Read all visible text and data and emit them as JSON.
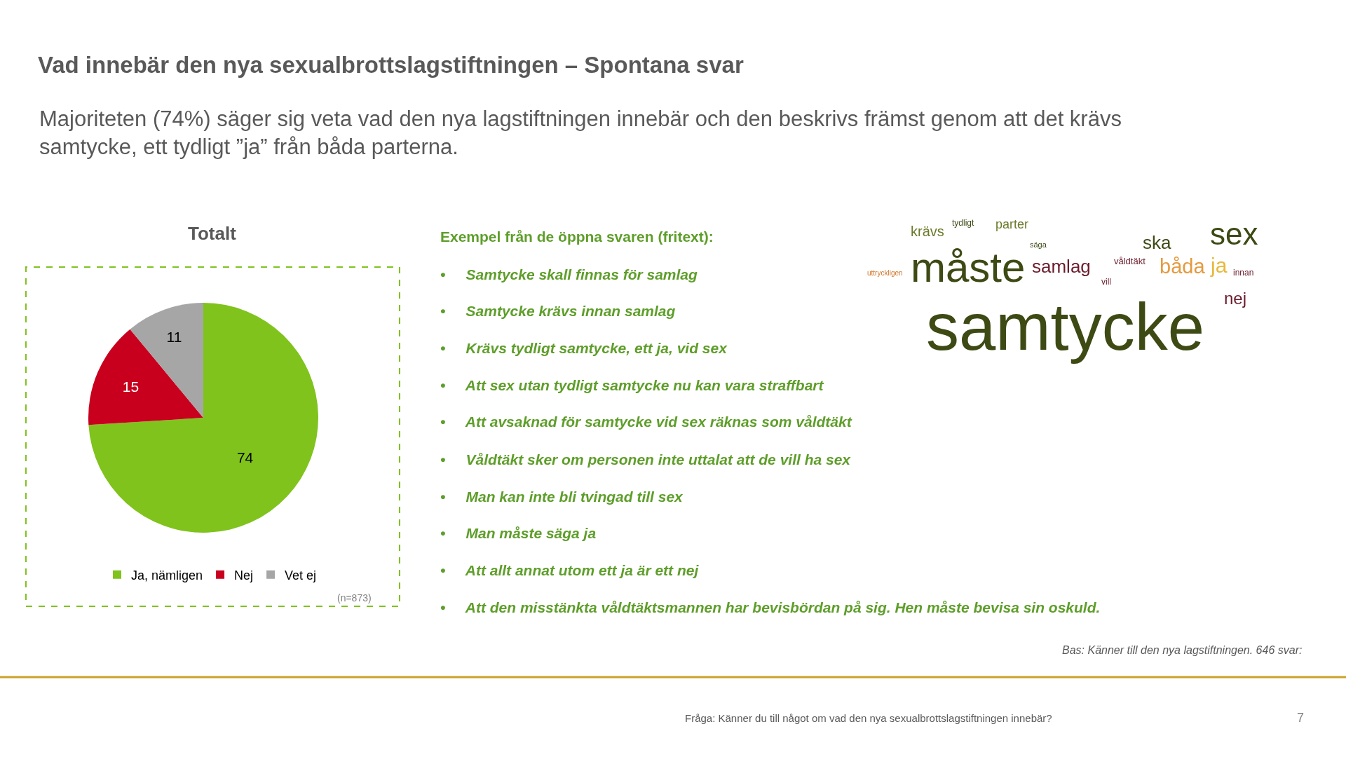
{
  "chart_data": {
    "type": "pie",
    "title": "Vad innebär den nya sexualbrottslagstiftningen – Spontana svar",
    "subtitle": "Majoriteten (74%) säger sig veta vad den nya lagstiftningen innebär och den beskrivs främst genom att det krävs samtycke, ett tydligt ”ja” från båda parterna.",
    "categories": [
      "Ja, nämligen",
      "Nej",
      "Vet ej"
    ],
    "values": [
      74,
      15,
      11
    ],
    "colors": [
      "#7fc31c",
      "#c8001e",
      "#a6a6a6"
    ],
    "data_labels": true,
    "legend": "bottom",
    "annotations": [
      "Totalt",
      "(n=873)",
      "Exempel från de öppna svaren (fritext):",
      "•     Samtycke skall finnas för samlag",
      "•     Samtycke krävs innan samlag",
      "•     Krävs tydligt samtycke, ett ja, vid sex",
      "•     Att sex utan tydligt samtycke nu kan vara straffbart",
      "•     Att avsaknad för samtycke vid sex räknas som våldtäkt",
      "•     Våldtäkt sker om personen inte uttalat att de vill ha sex",
      "•     Man kan inte bli tvingad till sex",
      "•     Man måste säga ja",
      "•     Att allt annat utom ett ja är ett nej",
      "•     Att den misstänkta våldtäktsmannen har bevisbördan på sig. Hen måste bevisa sin oskuld.",
      "Bas: Känner till den nya lagstiftningen. 646 svar:",
      "Fråga: Känner du till något om vad den nya sexualbrottslagstiftningen innebär?",
      "7",
      "samtycke",
      "måste",
      "sex",
      "ska",
      "samlag",
      "båda",
      "ja",
      "innan",
      "nej",
      "krävs",
      "tydligt",
      "parter",
      "säga",
      "våldtäkt",
      "uttryckligen",
      "vill"
    ]
  }
}
